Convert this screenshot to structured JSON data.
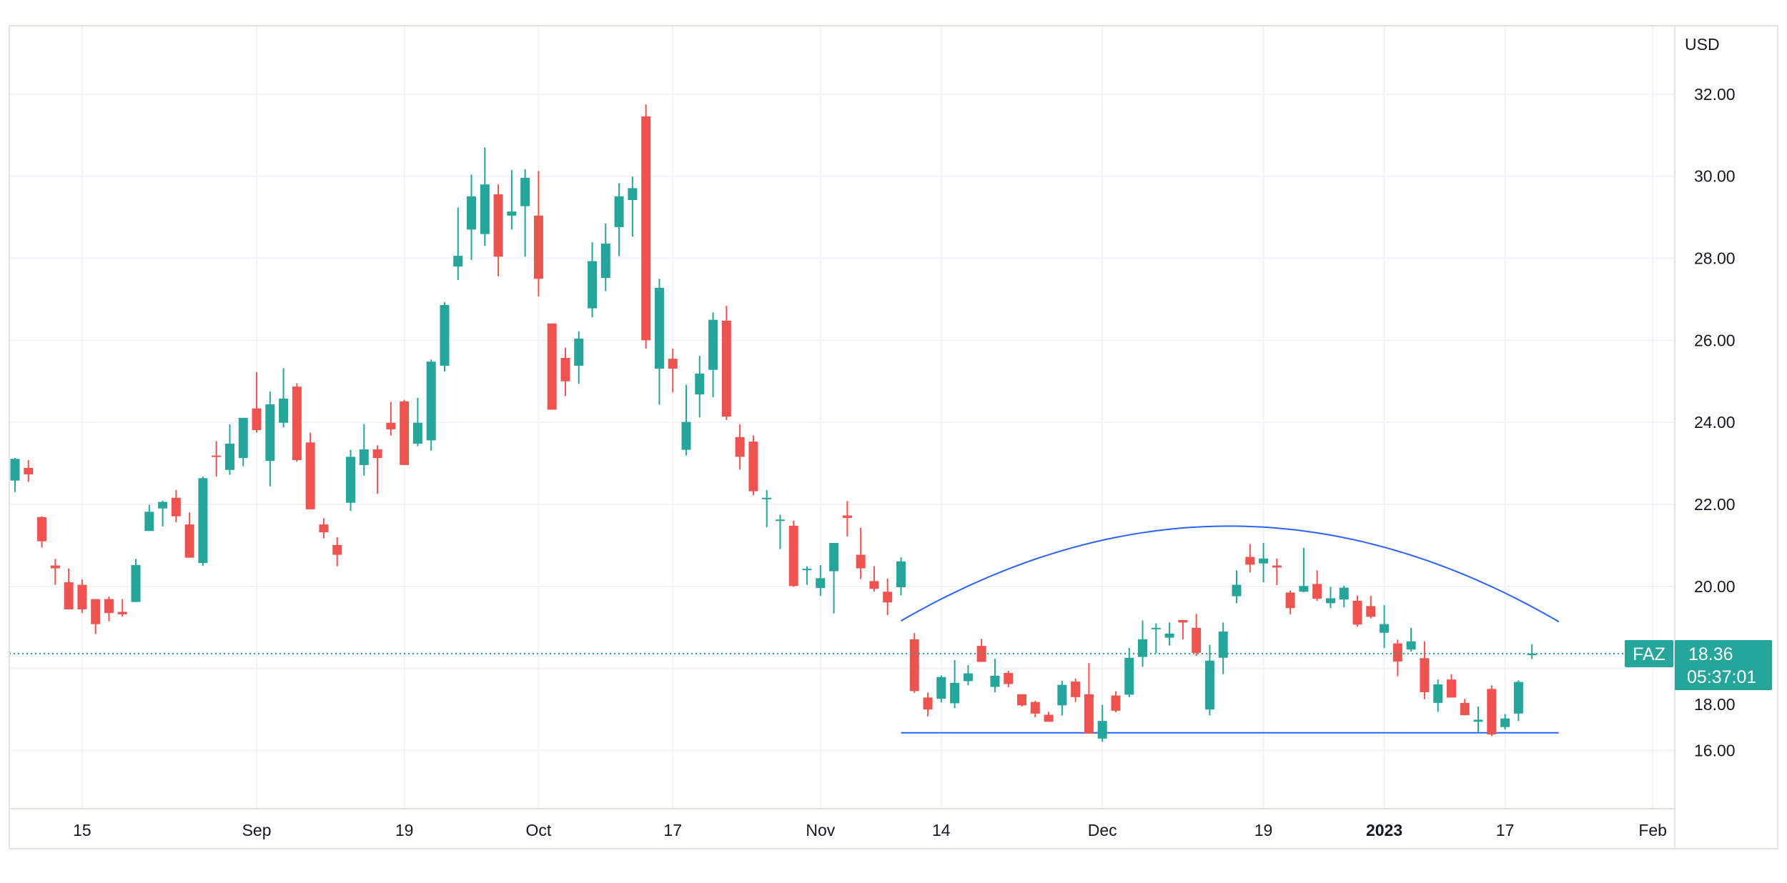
{
  "symbol": "FAZ",
  "currency": "USD",
  "last_price": "18.36",
  "countdown": "05:37:01",
  "colors": {
    "up": "#26a69a",
    "down": "#ef5350",
    "drawing": "#2962ff",
    "grid": "#f0f3fa",
    "border": "#e0e3eb",
    "text": "#131722"
  },
  "chart_data": {
    "type": "candlestick",
    "title": "",
    "ylabel": "USD",
    "ylim": [
      14.58,
      33.67
    ],
    "grid": true,
    "y_ticks": [
      "16.00",
      "18.00",
      "20.00",
      "22.00",
      "24.00",
      "26.00",
      "28.00",
      "30.00",
      "32.00"
    ],
    "x_ticks": [
      {
        "label": "15",
        "date": "2022-08-15",
        "bold": false
      },
      {
        "label": "Sep",
        "date": "2022-09-01",
        "bold": false
      },
      {
        "label": "19",
        "date": "2022-09-19",
        "bold": false
      },
      {
        "label": "Oct",
        "date": "2022-10-03",
        "bold": false
      },
      {
        "label": "17",
        "date": "2022-10-17",
        "bold": false
      },
      {
        "label": "Nov",
        "date": "2022-11-01",
        "bold": false
      },
      {
        "label": "14",
        "date": "2022-11-14",
        "bold": false
      },
      {
        "label": "Dec",
        "date": "2022-12-01",
        "bold": false
      },
      {
        "label": "19",
        "date": "2022-12-19",
        "bold": false
      },
      {
        "label": "2023",
        "date": "2023-01-03",
        "bold": true
      },
      {
        "label": "17",
        "date": "2023-01-17",
        "bold": false
      },
      {
        "label": "Feb",
        "date": "2023-02-01",
        "bold": false
      }
    ],
    "columns": [
      "date",
      "open",
      "high",
      "low",
      "close"
    ],
    "candles": [
      [
        "2022-08-08",
        22.58,
        23.13,
        22.3,
        23.11
      ],
      [
        "2022-08-09",
        22.89,
        23.08,
        22.55,
        22.73
      ],
      [
        "2022-08-10",
        21.69,
        21.71,
        20.95,
        21.1
      ],
      [
        "2022-08-11",
        20.51,
        20.67,
        20.04,
        20.44
      ],
      [
        "2022-08-12",
        20.1,
        20.44,
        19.44,
        19.44
      ],
      [
        "2022-08-15",
        20.04,
        20.17,
        19.35,
        19.44
      ],
      [
        "2022-08-16",
        19.69,
        19.69,
        18.84,
        19.08
      ],
      [
        "2022-08-17",
        19.69,
        19.75,
        19.15,
        19.35
      ],
      [
        "2022-08-18",
        19.38,
        19.69,
        19.26,
        19.32
      ],
      [
        "2022-08-19",
        19.62,
        20.67,
        19.62,
        20.52
      ],
      [
        "2022-08-22",
        21.35,
        21.99,
        21.35,
        21.82
      ],
      [
        "2022-08-23",
        21.9,
        22.09,
        21.46,
        22.06
      ],
      [
        "2022-08-24",
        22.16,
        22.35,
        21.56,
        21.71
      ],
      [
        "2022-08-25",
        21.51,
        21.8,
        20.7,
        20.7
      ],
      [
        "2022-08-26",
        20.57,
        22.68,
        20.5,
        22.64
      ],
      [
        "2022-08-29",
        23.19,
        23.54,
        22.68,
        23.16
      ],
      [
        "2022-08-30",
        22.84,
        23.95,
        22.72,
        23.48
      ],
      [
        "2022-08-31",
        23.13,
        24.11,
        22.93,
        24.11
      ],
      [
        "2022-09-01",
        24.34,
        25.22,
        23.75,
        23.81
      ],
      [
        "2022-09-02",
        23.06,
        24.75,
        22.44,
        24.44
      ],
      [
        "2022-09-06",
        23.99,
        25.32,
        23.88,
        24.58
      ],
      [
        "2022-09-07",
        24.87,
        24.95,
        23.04,
        23.08
      ],
      [
        "2022-09-08",
        23.51,
        23.75,
        21.88,
        21.88
      ],
      [
        "2022-09-09",
        21.51,
        21.66,
        21.17,
        21.32
      ],
      [
        "2022-09-12",
        21.01,
        21.2,
        20.49,
        20.77
      ],
      [
        "2022-09-13",
        22.04,
        23.33,
        21.84,
        23.16
      ],
      [
        "2022-09-14",
        22.96,
        23.96,
        22.7,
        23.34
      ],
      [
        "2022-09-15",
        23.34,
        23.44,
        22.26,
        23.13
      ],
      [
        "2022-09-16",
        23.99,
        24.5,
        23.68,
        23.83
      ],
      [
        "2022-09-19",
        24.51,
        24.55,
        22.96,
        22.96
      ],
      [
        "2022-09-20",
        23.48,
        24.6,
        23.42,
        23.99
      ],
      [
        "2022-09-21",
        23.56,
        25.53,
        23.31,
        25.48
      ],
      [
        "2022-09-22",
        25.38,
        26.93,
        25.24,
        26.86
      ],
      [
        "2022-09-23",
        27.8,
        29.24,
        27.47,
        28.06
      ],
      [
        "2022-09-26",
        28.7,
        30.04,
        27.96,
        29.51
      ],
      [
        "2022-09-27",
        28.59,
        30.7,
        28.3,
        29.8
      ],
      [
        "2022-09-28",
        29.56,
        29.8,
        27.56,
        28.04
      ],
      [
        "2022-09-29",
        29.04,
        30.15,
        28.7,
        29.14
      ],
      [
        "2022-09-30",
        29.27,
        30.17,
        28.04,
        29.96
      ],
      [
        "2022-10-03",
        29.04,
        30.13,
        27.07,
        27.5
      ],
      [
        "2022-10-04",
        26.41,
        26.41,
        24.31,
        24.31
      ],
      [
        "2022-10-05",
        25.57,
        25.82,
        24.64,
        25.0
      ],
      [
        "2022-10-06",
        25.38,
        26.22,
        24.94,
        26.04
      ],
      [
        "2022-10-07",
        26.78,
        28.39,
        26.56,
        27.93
      ],
      [
        "2022-10-10",
        27.52,
        28.85,
        27.2,
        28.36
      ],
      [
        "2022-10-11",
        28.76,
        29.83,
        28.05,
        29.51
      ],
      [
        "2022-10-12",
        29.42,
        29.99,
        28.53,
        29.71
      ],
      [
        "2022-10-13",
        31.46,
        31.75,
        25.8,
        26.0
      ],
      [
        "2022-10-14",
        25.31,
        27.5,
        24.43,
        27.28
      ],
      [
        "2022-10-17",
        25.55,
        25.8,
        24.73,
        25.31
      ],
      [
        "2022-10-18",
        23.33,
        24.92,
        23.19,
        24.01
      ],
      [
        "2022-10-19",
        24.68,
        25.62,
        24.12,
        25.19
      ],
      [
        "2022-10-20",
        25.28,
        26.68,
        24.61,
        26.5
      ],
      [
        "2022-10-21",
        26.48,
        26.84,
        24.06,
        24.14
      ],
      [
        "2022-10-24",
        23.64,
        23.95,
        22.85,
        23.16
      ],
      [
        "2022-10-25",
        23.53,
        23.68,
        22.22,
        22.32
      ],
      [
        "2022-10-26",
        22.13,
        22.35,
        21.44,
        22.16
      ],
      [
        "2022-10-27",
        21.6,
        21.75,
        20.91,
        21.63
      ],
      [
        "2022-10-28",
        21.48,
        21.6,
        19.99,
        20.01
      ],
      [
        "2022-10-31",
        20.4,
        20.49,
        20.04,
        20.43
      ],
      [
        "2022-11-01",
        19.96,
        20.52,
        19.77,
        20.2
      ],
      [
        "2022-11-02",
        20.37,
        21.06,
        19.34,
        21.06
      ],
      [
        "2022-11-03",
        21.73,
        22.08,
        21.22,
        21.67
      ],
      [
        "2022-11-04",
        20.77,
        21.43,
        20.18,
        20.44
      ],
      [
        "2022-11-07",
        20.13,
        20.49,
        19.87,
        19.94
      ],
      [
        "2022-11-08",
        19.87,
        20.19,
        19.3,
        19.61
      ],
      [
        "2022-11-09",
        19.98,
        20.71,
        19.78,
        20.61
      ],
      [
        "2022-11-10",
        18.71,
        18.86,
        17.4,
        17.45
      ],
      [
        "2022-11-11",
        17.29,
        17.41,
        16.83,
        17.0
      ],
      [
        "2022-11-14",
        17.26,
        17.83,
        17.17,
        17.79
      ],
      [
        "2022-11-15",
        17.15,
        18.2,
        17.03,
        17.65
      ],
      [
        "2022-11-16",
        17.69,
        18.08,
        17.59,
        17.88
      ],
      [
        "2022-11-17",
        18.55,
        18.72,
        18.16,
        18.16
      ],
      [
        "2022-11-18",
        17.55,
        18.24,
        17.42,
        17.82
      ],
      [
        "2022-11-21",
        17.89,
        17.94,
        17.54,
        17.62
      ],
      [
        "2022-11-22",
        17.37,
        17.37,
        17.07,
        17.1
      ],
      [
        "2022-11-23",
        17.18,
        17.21,
        16.81,
        16.9
      ],
      [
        "2022-11-25",
        16.87,
        16.94,
        16.7,
        16.7
      ],
      [
        "2022-11-28",
        17.1,
        17.7,
        16.85,
        17.6
      ],
      [
        "2022-11-29",
        17.68,
        17.75,
        17.18,
        17.3
      ],
      [
        "2022-11-30",
        17.37,
        18.13,
        16.41,
        16.41
      ],
      [
        "2022-12-01",
        16.29,
        17.11,
        16.21,
        16.72
      ],
      [
        "2022-12-02",
        17.34,
        17.44,
        16.93,
        16.97
      ],
      [
        "2022-12-05",
        17.36,
        18.5,
        17.3,
        18.26
      ],
      [
        "2022-12-06",
        18.28,
        19.17,
        18.04,
        18.71
      ],
      [
        "2022-12-07",
        18.97,
        19.1,
        18.37,
        18.99
      ],
      [
        "2022-12-08",
        18.75,
        19.12,
        18.56,
        18.85
      ],
      [
        "2022-12-09",
        19.18,
        19.18,
        18.71,
        19.12
      ],
      [
        "2022-12-12",
        18.99,
        19.33,
        18.3,
        18.38
      ],
      [
        "2022-12-13",
        17.0,
        18.57,
        16.86,
        18.19
      ],
      [
        "2022-12-14",
        18.26,
        19.12,
        17.86,
        18.9
      ],
      [
        "2022-12-15",
        19.76,
        20.39,
        19.59,
        20.04
      ],
      [
        "2022-12-16",
        20.72,
        21.03,
        20.34,
        20.53
      ],
      [
        "2022-12-19",
        20.56,
        21.06,
        20.1,
        20.68
      ],
      [
        "2022-12-20",
        20.51,
        20.68,
        20.03,
        20.46
      ],
      [
        "2022-12-21",
        19.85,
        19.9,
        19.32,
        19.47
      ],
      [
        "2022-12-22",
        19.87,
        20.94,
        19.86,
        20.01
      ],
      [
        "2022-12-23",
        20.06,
        20.39,
        19.65,
        19.7
      ],
      [
        "2022-12-27",
        19.59,
        19.99,
        19.47,
        19.71
      ],
      [
        "2022-12-28",
        19.68,
        20.02,
        19.49,
        19.97
      ],
      [
        "2022-12-29",
        19.65,
        19.77,
        19.02,
        19.07
      ],
      [
        "2022-12-30",
        19.52,
        19.77,
        19.22,
        19.26
      ],
      [
        "2023-01-03",
        18.87,
        19.54,
        18.5,
        19.08
      ],
      [
        "2023-01-04",
        18.61,
        18.7,
        17.81,
        18.17
      ],
      [
        "2023-01-05",
        18.46,
        18.99,
        18.41,
        18.66
      ],
      [
        "2023-01-06",
        18.25,
        18.66,
        17.25,
        17.42
      ],
      [
        "2023-01-09",
        17.16,
        17.73,
        16.94,
        17.61
      ],
      [
        "2023-01-10",
        17.73,
        17.86,
        17.29,
        17.29
      ],
      [
        "2023-01-11",
        17.16,
        17.26,
        16.86,
        16.86
      ],
      [
        "2023-01-12",
        16.7,
        17.07,
        16.45,
        16.75
      ],
      [
        "2023-01-13",
        17.5,
        17.59,
        16.35,
        16.39
      ],
      [
        "2023-01-17",
        16.57,
        16.89,
        16.51,
        16.78
      ],
      [
        "2023-01-18",
        16.9,
        17.71,
        16.72,
        17.67
      ],
      [
        "2023-01-19",
        18.33,
        18.59,
        18.23,
        18.36
      ]
    ],
    "drawings": [
      {
        "type": "arc",
        "points": [
          [
            "2022-11-09",
            19.16
          ],
          [
            "2022-12-14",
            21.47
          ],
          [
            "2023-01-23",
            19.14
          ]
        ]
      },
      {
        "type": "horizontal-segment",
        "from": "2022-11-09",
        "to": "2023-01-23",
        "price": 16.43
      }
    ],
    "last_price_line": 18.36
  }
}
